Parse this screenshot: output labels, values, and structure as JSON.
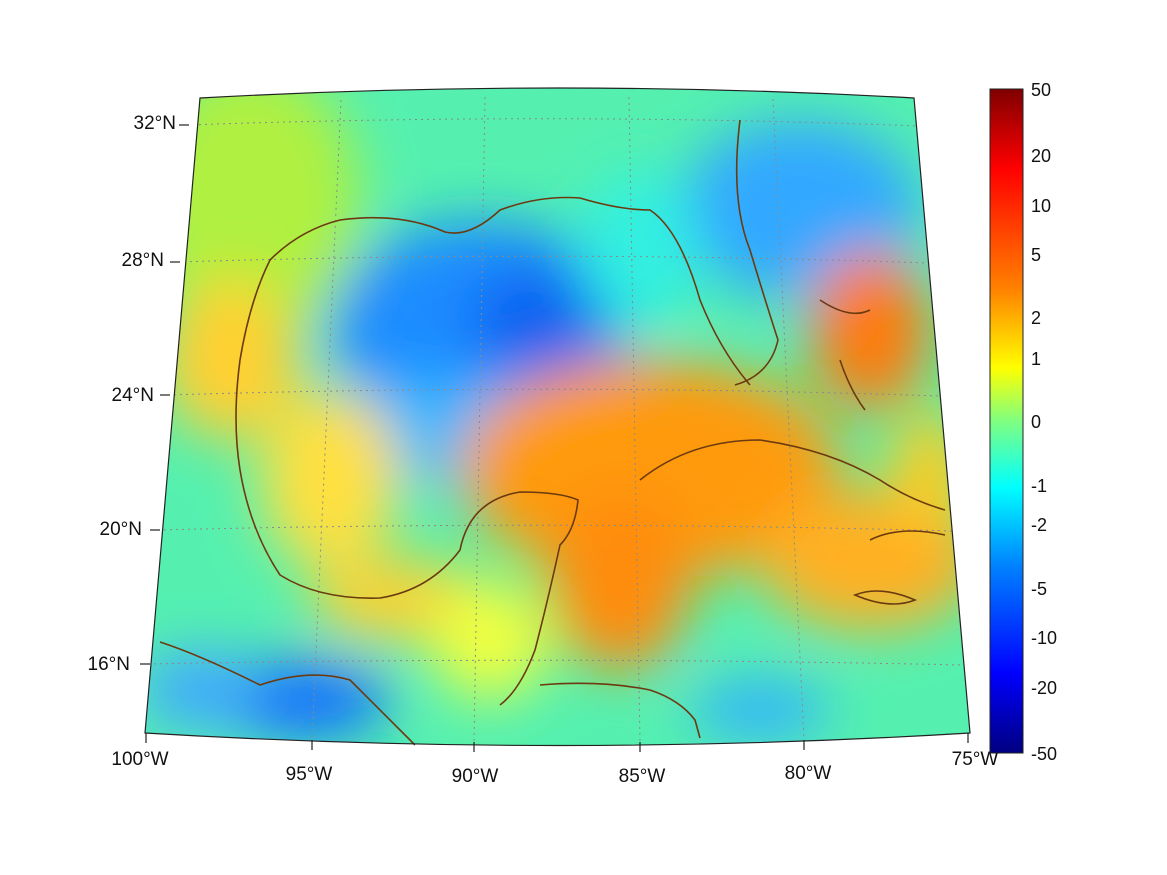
{
  "map": {
    "lon_labels": [
      "100°W",
      "95°W",
      "90°W",
      "85°W",
      "80°W",
      "75°W"
    ],
    "lat_labels": [
      "16°N",
      "20°N",
      "24°N",
      "28°N",
      "32°N"
    ],
    "grid": true,
    "coastline_color": "#6b3a10",
    "gridline_color": "#9a9a9a"
  },
  "colorbar": {
    "colormap": "jet",
    "labels": [
      "50",
      "20",
      "10",
      "5",
      "2",
      "1",
      "0",
      "-1",
      "-2",
      "-5",
      "-10",
      "-20",
      "-50"
    ],
    "colors": [
      "#800000",
      "#ff0000",
      "#ff8000",
      "#ffff00",
      "#00ffff",
      "#0080ff",
      "#0000ff",
      "#000080"
    ]
  }
}
